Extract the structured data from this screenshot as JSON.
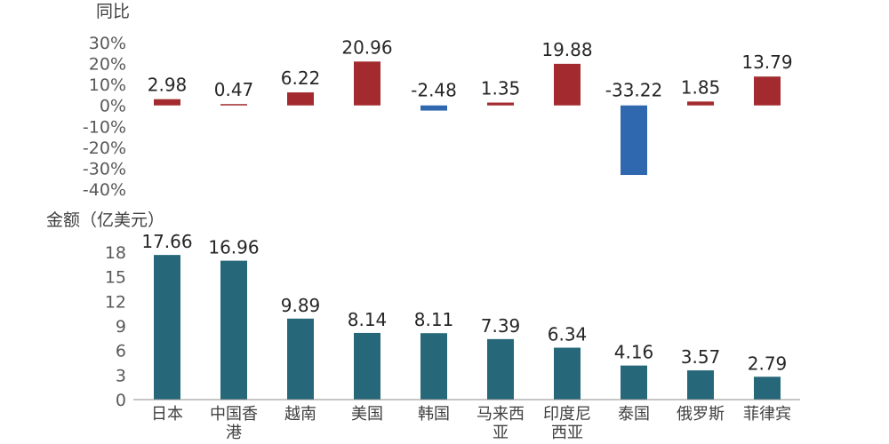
{
  "chart_data": [
    {
      "type": "bar",
      "title": "",
      "ylabel": "同比",
      "ylim": [
        -40,
        30
      ],
      "ytick_labels": [
        "30%",
        "20%",
        "10%",
        "0%",
        "-10%",
        "-20%",
        "-30%",
        "-40%"
      ],
      "categories": [
        "日本",
        "中国香港",
        "越南",
        "美国",
        "韩国",
        "马来西亚",
        "印度尼西亚",
        "泰国",
        "俄罗斯",
        "菲律宾"
      ],
      "values": [
        2.98,
        0.47,
        6.22,
        20.96,
        -2.48,
        1.35,
        19.88,
        -33.22,
        1.85,
        13.79
      ],
      "value_labels": [
        "2.98",
        "0.47",
        "6.22",
        "20.96",
        "-2.48",
        "1.35",
        "19.88",
        "-33.22",
        "1.85",
        "13.79"
      ],
      "colors": {
        "positive": "#A32A2E",
        "negative": "#3068B0"
      },
      "grid": false
    },
    {
      "type": "bar",
      "title": "",
      "ylabel": "金额（亿美元）",
      "ylim": [
        0,
        18
      ],
      "ytick_labels": [
        "18",
        "15",
        "12",
        "9",
        "6",
        "3",
        "0"
      ],
      "categories": [
        "日本",
        "中国香港",
        "越南",
        "美国",
        "韩国",
        "马来西亚",
        "印度尼西亚",
        "泰国",
        "俄罗斯",
        "菲律宾"
      ],
      "x_labels": [
        [
          "日本"
        ],
        [
          "中国香",
          "港"
        ],
        [
          "越南"
        ],
        [
          "美国"
        ],
        [
          "韩国"
        ],
        [
          "马来西",
          "亚"
        ],
        [
          "印度尼",
          "西亚"
        ],
        [
          "泰国"
        ],
        [
          "俄罗斯"
        ],
        [
          "菲律宾"
        ]
      ],
      "values": [
        17.66,
        16.96,
        9.89,
        8.14,
        8.11,
        7.39,
        6.34,
        4.16,
        3.57,
        2.79
      ],
      "value_labels": [
        "17.66",
        "16.96",
        "9.89",
        "8.14",
        "8.11",
        "7.39",
        "6.34",
        "4.16",
        "3.57",
        "2.79"
      ],
      "colors": {
        "bar": "#26687A",
        "axis": "#8C8C8C"
      },
      "grid": false
    }
  ]
}
